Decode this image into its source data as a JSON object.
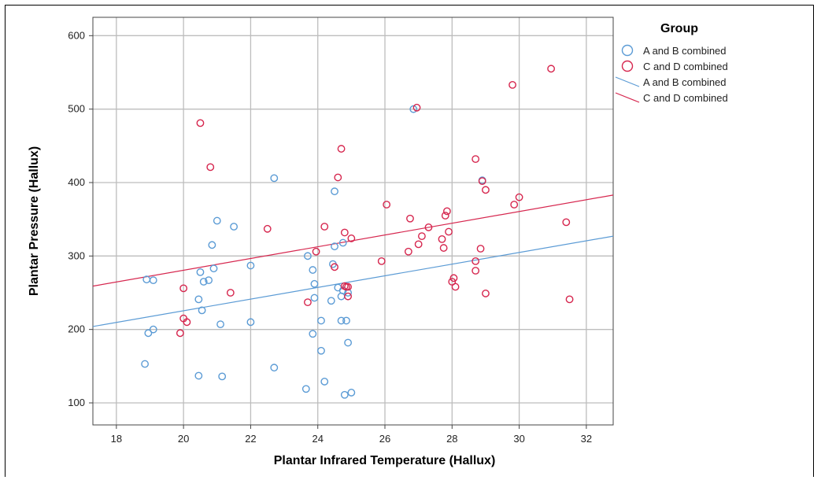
{
  "chart_data": {
    "type": "scatter",
    "title": "",
    "xlabel": "Plantar Infrared Temperature (Hallux)",
    "ylabel": "Plantar Pressure (Hallux)",
    "xlim": [
      17.3,
      32.8
    ],
    "ylim": [
      70,
      625
    ],
    "xticks": [
      18,
      20,
      22,
      24,
      26,
      28,
      30,
      32
    ],
    "yticks": [
      100,
      200,
      300,
      400,
      500,
      600
    ],
    "grid": true,
    "legend": {
      "title": "Group",
      "placement": "right",
      "entries": [
        {
          "label": "A and B combined",
          "kind": "marker",
          "series": 0
        },
        {
          "label": "C and D combined",
          "kind": "marker",
          "series": 1
        },
        {
          "label": "A and B combined",
          "kind": "line",
          "series": 0
        },
        {
          "label": "C and D combined",
          "kind": "line",
          "series": 1
        }
      ]
    },
    "series": [
      {
        "name": "A and B combined",
        "color": "#5b9bd5",
        "points": [
          [
            18.85,
            153
          ],
          [
            18.9,
            268
          ],
          [
            18.95,
            195
          ],
          [
            19.1,
            267
          ],
          [
            19.1,
            200
          ],
          [
            20.45,
            241
          ],
          [
            20.5,
            278
          ],
          [
            20.45,
            137
          ],
          [
            20.55,
            226
          ],
          [
            20.6,
            265
          ],
          [
            20.75,
            267
          ],
          [
            20.85,
            315
          ],
          [
            20.9,
            283
          ],
          [
            21.0,
            348
          ],
          [
            21.1,
            207
          ],
          [
            21.15,
            136
          ],
          [
            21.5,
            340
          ],
          [
            22.0,
            287
          ],
          [
            22.0,
            210
          ],
          [
            22.7,
            406
          ],
          [
            22.7,
            148
          ],
          [
            23.65,
            119
          ],
          [
            23.7,
            300
          ],
          [
            23.85,
            281
          ],
          [
            23.85,
            194
          ],
          [
            23.9,
            262
          ],
          [
            23.9,
            243
          ],
          [
            24.1,
            212
          ],
          [
            24.1,
            171
          ],
          [
            24.2,
            129
          ],
          [
            24.4,
            239
          ],
          [
            24.45,
            289
          ],
          [
            24.5,
            313
          ],
          [
            24.5,
            388
          ],
          [
            24.6,
            257
          ],
          [
            24.7,
            245
          ],
          [
            24.7,
            212
          ],
          [
            24.75,
            318
          ],
          [
            24.75,
            253
          ],
          [
            24.8,
            111
          ],
          [
            24.85,
            212
          ],
          [
            24.9,
            250
          ],
          [
            24.9,
            182
          ],
          [
            25.0,
            114
          ],
          [
            26.85,
            500
          ],
          [
            28.9,
            403
          ]
        ],
        "fit_line": [
          [
            17.3,
            204
          ],
          [
            32.8,
            327
          ]
        ]
      },
      {
        "name": "C and D combined",
        "color": "#d6264e",
        "points": [
          [
            19.9,
            195
          ],
          [
            20.0,
            215
          ],
          [
            20.0,
            256
          ],
          [
            20.1,
            210
          ],
          [
            20.5,
            481
          ],
          [
            20.8,
            421
          ],
          [
            21.4,
            250
          ],
          [
            22.5,
            337
          ],
          [
            23.7,
            237
          ],
          [
            23.95,
            306
          ],
          [
            24.2,
            340
          ],
          [
            24.5,
            285
          ],
          [
            24.6,
            407
          ],
          [
            24.7,
            446
          ],
          [
            24.8,
            332
          ],
          [
            24.8,
            259
          ],
          [
            24.85,
            258
          ],
          [
            24.9,
            258
          ],
          [
            24.9,
            245
          ],
          [
            25.0,
            324
          ],
          [
            25.9,
            293
          ],
          [
            26.05,
            370
          ],
          [
            26.7,
            306
          ],
          [
            26.75,
            351
          ],
          [
            26.95,
            502
          ],
          [
            27.0,
            316
          ],
          [
            27.1,
            327
          ],
          [
            27.3,
            339
          ],
          [
            27.7,
            323
          ],
          [
            27.75,
            311
          ],
          [
            27.8,
            355
          ],
          [
            27.85,
            361
          ],
          [
            27.9,
            333
          ],
          [
            28.0,
            265
          ],
          [
            28.05,
            270
          ],
          [
            28.1,
            258
          ],
          [
            28.7,
            432
          ],
          [
            28.7,
            293
          ],
          [
            28.7,
            280
          ],
          [
            28.85,
            310
          ],
          [
            28.9,
            402
          ],
          [
            29.0,
            390
          ],
          [
            29.0,
            249
          ],
          [
            29.8,
            533
          ],
          [
            29.85,
            370
          ],
          [
            30.0,
            380
          ],
          [
            30.95,
            555
          ],
          [
            31.4,
            346
          ],
          [
            31.5,
            241
          ]
        ],
        "fit_line": [
          [
            17.3,
            259
          ],
          [
            32.8,
            383
          ]
        ]
      }
    ]
  }
}
